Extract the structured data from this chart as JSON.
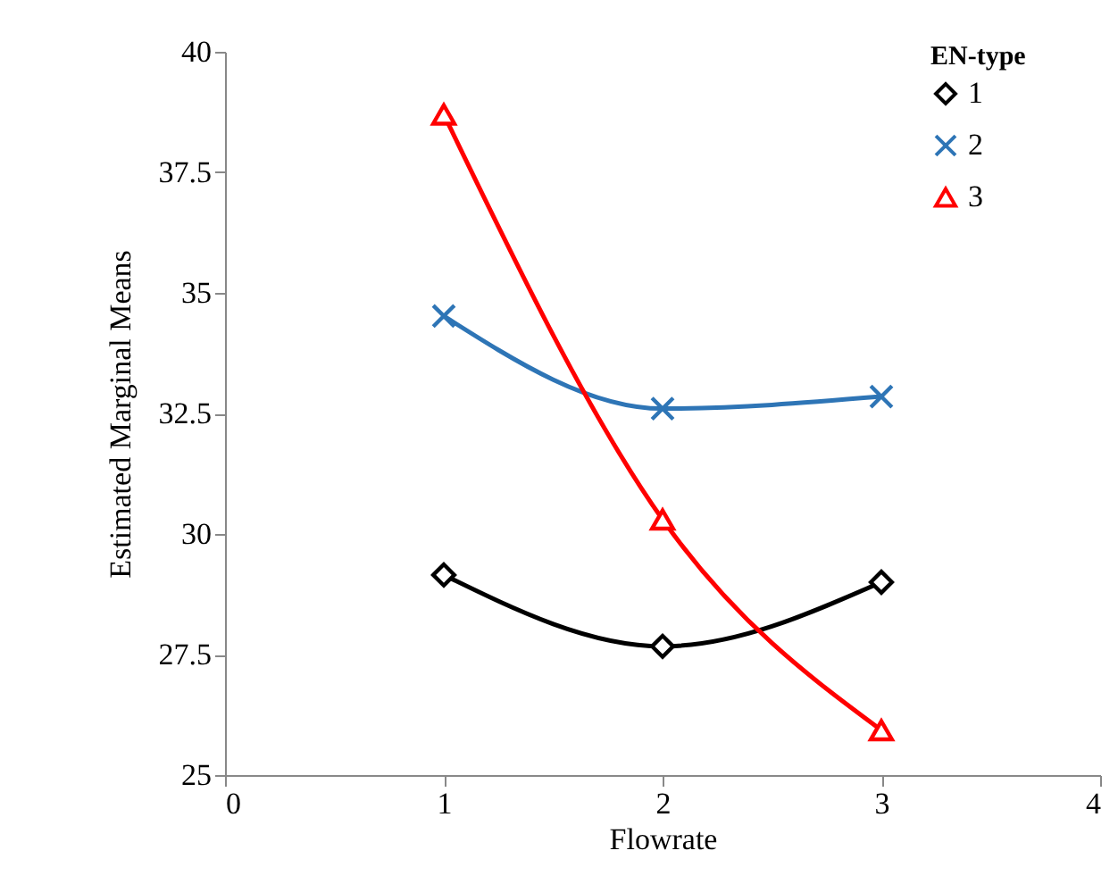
{
  "chart_data": {
    "type": "line",
    "xlabel": "Flowrate",
    "ylabel": "Estimated Marginal Means",
    "legend_title": "EN-type",
    "x": [
      1,
      2,
      3
    ],
    "series": [
      {
        "name": "1",
        "color": "#000000",
        "marker": "diamond",
        "values": [
          29.15,
          27.67,
          29.0
        ]
      },
      {
        "name": "2",
        "color": "#2e75b6",
        "marker": "cross",
        "values": [
          34.52,
          32.6,
          32.85
        ]
      },
      {
        "name": "3",
        "color": "#ff0000",
        "marker": "triangle",
        "values": [
          38.7,
          30.3,
          25.93
        ]
      }
    ],
    "xlim": [
      0,
      4
    ],
    "xticks": [
      0,
      1,
      2,
      3,
      4
    ],
    "ylim": [
      25,
      40
    ],
    "yticks": [
      25,
      27.5,
      30,
      32.5,
      35,
      37.5,
      40
    ],
    "grid": false,
    "legend": "top right",
    "line_style": "solid"
  }
}
